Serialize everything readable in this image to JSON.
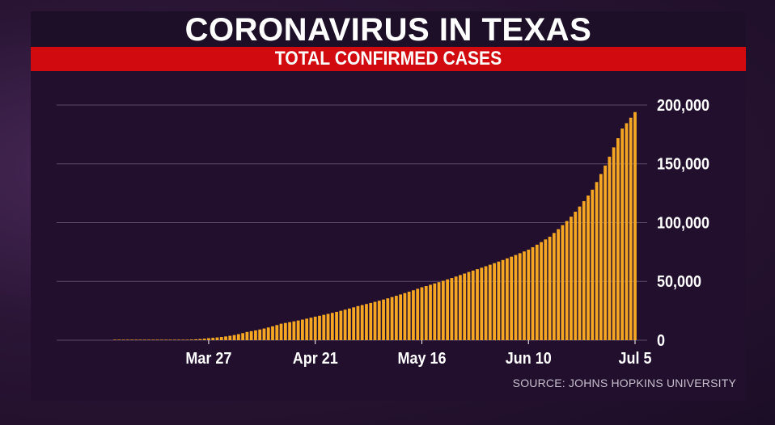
{
  "header": {
    "title": "CORONAVIRUS IN TEXAS",
    "subtitle": "TOTAL CONFIRMED CASES"
  },
  "footer": {
    "source": "SOURCE: JOHNS HOPKINS UNIVERSITY"
  },
  "colors": {
    "bar": "#f5a623",
    "subtitle_bar": "#d10a10",
    "grid": "#5a4a66"
  },
  "chart_data": {
    "type": "bar",
    "title": "CORONAVIRUS IN TEXAS",
    "subtitle": "TOTAL CONFIRMED CASES",
    "x_start": "2020-03-05",
    "x_end": "2020-07-05",
    "x_ticks": [
      "Mar 27",
      "Apr 21",
      "May 16",
      "Jun 10",
      "Jul 5"
    ],
    "y_ticks": [
      "200,000",
      "150,000",
      "100,000",
      "50,000",
      "0"
    ],
    "ylim": [
      0,
      200000
    ],
    "y_axis_side": "right",
    "grid": true,
    "legend": "none",
    "anchors": [
      [
        "2020-03-05",
        0
      ],
      [
        "2020-03-15",
        60
      ],
      [
        "2020-03-27",
        1700
      ],
      [
        "2020-04-05",
        7000
      ],
      [
        "2020-04-13",
        14000
      ],
      [
        "2020-04-21",
        20000
      ],
      [
        "2020-05-01",
        29000
      ],
      [
        "2020-05-16",
        45000
      ],
      [
        "2020-05-27",
        58000
      ],
      [
        "2020-06-10",
        77000
      ],
      [
        "2020-06-15",
        88000
      ],
      [
        "2020-06-20",
        105000
      ],
      [
        "2020-06-25",
        128000
      ],
      [
        "2020-06-30",
        164000
      ],
      [
        "2020-07-02",
        180000
      ],
      [
        "2020-07-05",
        194000
      ]
    ]
  }
}
